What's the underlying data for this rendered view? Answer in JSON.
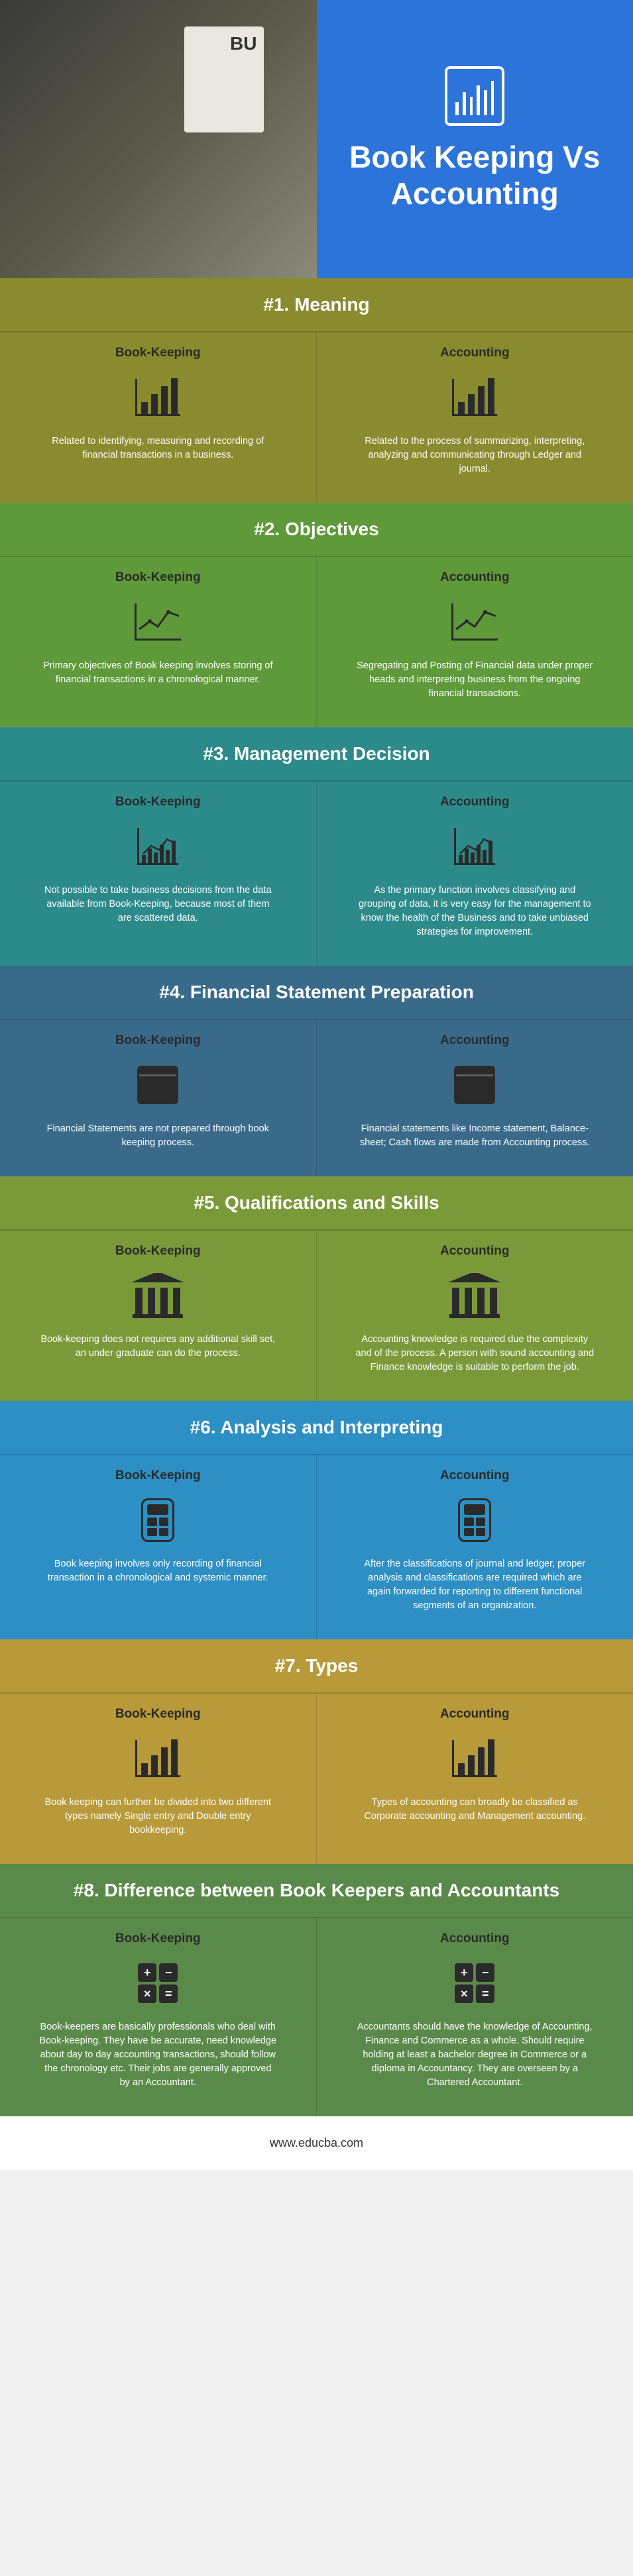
{
  "header": {
    "title": "Book Keeping Vs Accounting",
    "header_bar_heights": [
      20,
      35,
      28,
      45,
      38,
      52
    ]
  },
  "labels": {
    "bk": "Book-Keeping",
    "ac": "Accounting"
  },
  "sections": [
    {
      "title": "#1. Meaning",
      "bg": "#8a8a2e",
      "icon": "bars",
      "bk": "Related to identifying, measuring and recording of financial transactions in a business.",
      "ac": "Related to the process of summarizing, interpreting, analyzing and communicating through Ledger and journal."
    },
    {
      "title": "#2. Objectives",
      "bg": "#5f9a3a",
      "icon": "line",
      "bk": "Primary objectives of Book keeping involves storing of financial transactions in a chronological manner.",
      "ac": "Segregating and Posting of Financial data under proper heads and interpreting business from the ongoing financial transactions."
    },
    {
      "title": "#3. Management Decision",
      "bg": "#2d8a8a",
      "icon": "mixed",
      "bk": "Not possible to take business decisions from the data available from Book-Keeping, because most of them are scattered data.",
      "ac": "As the primary function involves classifying and grouping of data, it is very easy for the management to know the health of the Business and to take unbiased strategies for improvement."
    },
    {
      "title": "#4. Financial Statement Preparation",
      "bg": "#3a6a8a",
      "icon": "doc",
      "bk": "Financial Statements are not prepared through book keeping process.",
      "ac": "Financial statements like Income statement, Balance-sheet; Cash flows are made from Accounting process."
    },
    {
      "title": "#5. Qualifications and Skills",
      "bg": "#7a9a3a",
      "icon": "pillars",
      "bk": "Book-keeping does not requires any additional skill set, an under graduate can do the process.",
      "ac": "Accounting knowledge is required due the complexity and of the process. A person with sound accounting and Finance knowledge is suitable to perform the job."
    },
    {
      "title": "#6. Analysis and Interpreting",
      "bg": "#2d8fc4",
      "icon": "calc",
      "bk": "Book keeping involves only recording of financial transaction in a chronological and systemic manner.",
      "ac": "After the classifications of journal and ledger, proper analysis and classifications are required which are again forwarded for reporting to different functional segments of an organization."
    },
    {
      "title": "#7. Types",
      "bg": "#b89a3a",
      "icon": "bars",
      "bk": "Book keeping can further be divided into two different types namely Single entry and Double entry bookkeeping.",
      "ac": "Types of accounting can broadly be classified as Corporate accounting and Management accounting."
    },
    {
      "title": "#8. Difference between Book Keepers and Accountants",
      "bg": "#5a8a4a",
      "icon": "calc2",
      "bk": "Book-keepers are basically professionals who deal with Book-keeping. They have be accurate, need knowledge about day to day accounting transactions, should follow the chronology etc. Their jobs are generally approved by an Accountant.",
      "ac": "Accountants should have the knowledge of Accounting, Finance and Commerce as a whole. Should require holding at least a bachelor degree in Commerce or a diploma in Accountancy. They are overseen by a Chartered Accountant."
    }
  ],
  "footer": "www.educba.com",
  "style": {
    "bar_heights": [
      18,
      30,
      42,
      54
    ],
    "mixed_bar_heights": [
      12,
      22,
      16,
      28,
      20,
      34
    ],
    "title_fontsize": 28,
    "col_head_fontsize": 19,
    "body_fontsize": 14.5,
    "header_bg": "#2d74da"
  }
}
